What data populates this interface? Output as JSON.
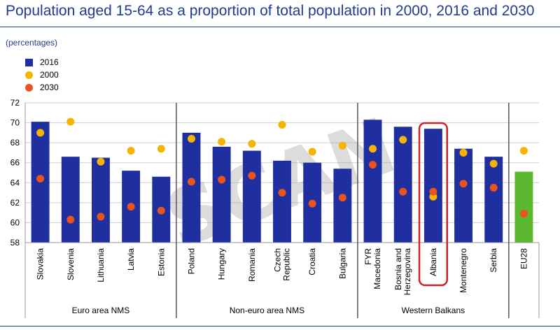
{
  "chart_data": {
    "type": "bar",
    "title": "Population aged 15-64 as a proportion of total population in 2000, 2016 and 2030",
    "subtitle": "(percentages)",
    "ylim": [
      58,
      72
    ],
    "yticks": [
      58,
      60,
      62,
      64,
      66,
      68,
      70,
      72
    ],
    "grid": true,
    "legend_position": "top-left",
    "categories": [
      "Slovakia",
      "Slovenia",
      "Lithuania",
      "Latvia",
      "Estonia",
      "Poland",
      "Hungary",
      "Romania",
      "Czech Republic",
      "Croatia",
      "Bulgaria",
      "FYR Macedonia",
      "Bosnia and Herzegovina",
      "Albania",
      "Montenegro",
      "Serbia",
      "EU28"
    ],
    "category_lines": [
      [
        "Slovakia"
      ],
      [
        "Slovenia"
      ],
      [
        "Lithuania"
      ],
      [
        "Latvia"
      ],
      [
        "Estonia"
      ],
      [
        "Poland"
      ],
      [
        "Hungary"
      ],
      [
        "Romania"
      ],
      [
        "Czech",
        "Republic"
      ],
      [
        "Croatia"
      ],
      [
        "Bulgaria"
      ],
      [
        "FYR",
        "Macedonia"
      ],
      [
        "Bosnia and",
        "Herzegovina"
      ],
      [
        "Albania"
      ],
      [
        "Montenegro"
      ],
      [
        "Serbia"
      ],
      [
        "EU28"
      ]
    ],
    "groups": [
      {
        "label": "Euro area NMS",
        "start": 0,
        "end": 4
      },
      {
        "label": "Non-euro area NMS",
        "start": 5,
        "end": 10
      },
      {
        "label": "Western Balkans",
        "start": 11,
        "end": 15
      }
    ],
    "highlighted_category": "Albania",
    "series": [
      {
        "name": "2016",
        "kind": "bar",
        "values": [
          70.1,
          66.6,
          66.5,
          65.2,
          64.6,
          69.0,
          67.6,
          67.2,
          66.2,
          66.0,
          65.4,
          70.3,
          69.6,
          69.4,
          67.4,
          66.6,
          65.1
        ]
      },
      {
        "name": "2000",
        "kind": "dot",
        "values": [
          69.0,
          70.1,
          66.1,
          67.2,
          67.4,
          68.4,
          68.1,
          67.9,
          69.8,
          67.1,
          67.7,
          67.4,
          68.3,
          62.6,
          67.0,
          65.9,
          67.2
        ]
      },
      {
        "name": "2030",
        "kind": "dot",
        "values": [
          64.4,
          60.3,
          60.6,
          61.6,
          61.2,
          64.1,
          64.3,
          64.7,
          63.0,
          61.9,
          62.5,
          65.8,
          63.1,
          63.1,
          63.9,
          63.5,
          60.9
        ]
      }
    ],
    "colors": {
      "bar": "#1f2fa0",
      "bar_highlight": "#5cb82e",
      "dot2000": "#f5b400",
      "dot2030": "#e8531f",
      "text": "#1f3d8f",
      "highlight_box": "#d0202a"
    }
  },
  "watermark": "SCAN"
}
